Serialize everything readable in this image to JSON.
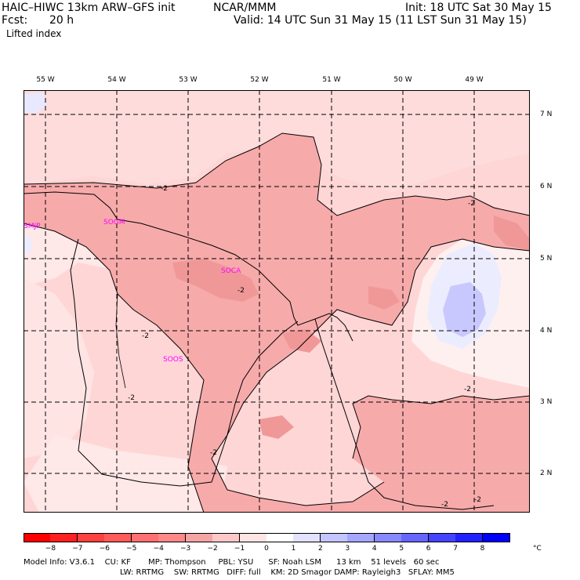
{
  "header": {
    "model": "HAIC–HIWC 13km ARW–GFS init",
    "center": "NCAR/MMM",
    "init": "Init: 18 UTC Sat 30 May 15",
    "fcst_label": "Fcst:",
    "fcst_value": "20 h",
    "valid": "Valid: 14 UTC Sun 31 May 15 (11 LST Sun 31 May 15)",
    "field": "Lifted index"
  },
  "map": {
    "lon_labels": [
      "55 W",
      "54 W",
      "53 W",
      "52 W",
      "51 W",
      "50 W",
      "49 W"
    ],
    "lat_labels": [
      "7 N",
      "6 N",
      "5 N",
      "4 N",
      "3 N",
      "2 N"
    ],
    "stations": [
      "SMJP",
      "SOGM",
      "SOCA",
      "SOOS"
    ],
    "contour_labels": [
      "-2",
      "-2",
      "-2",
      "-2",
      "-2",
      "-2",
      "-2",
      "-2",
      "-2"
    ],
    "colors": {
      "pos_1": "#f0f0ff",
      "pos_2": "#c8c8ff",
      "neg_1": "#ffd6d6",
      "neg_2": "#ffc0c0",
      "neg_3": "#f7a8a8",
      "neg_0": "#fff4f4"
    }
  },
  "colorbar": {
    "ticks": [
      "−8",
      "−7",
      "−6",
      "−5",
      "−4",
      "−3",
      "−2",
      "−1",
      "0",
      "1",
      "2",
      "3",
      "4",
      "5",
      "6",
      "7",
      "8"
    ],
    "unit": "°C",
    "colors": [
      "#ff0000",
      "#ff2020",
      "#ff4040",
      "#ff5a5a",
      "#ff7070",
      "#ff8888",
      "#f4a4a4",
      "#ffc8c8",
      "#ffe4e4",
      "#ffffff",
      "#e2e2ff",
      "#c4c4ff",
      "#a6a6ff",
      "#8888ff",
      "#6666ff",
      "#4444ff",
      "#2222ff",
      "#0000ff"
    ]
  },
  "footer": {
    "line1": "Model Info: V3.6.1    CU: KF       MP: Thompson     PBL: YSU      SF: Noah LSM      13 km    51 levels   60 sec",
    "line2": "LW: RRTMG    SW: RRTMG   DIFF: full    KM: 2D Smagor DAMP: Rayleigh3   SFLAY: MM5"
  }
}
